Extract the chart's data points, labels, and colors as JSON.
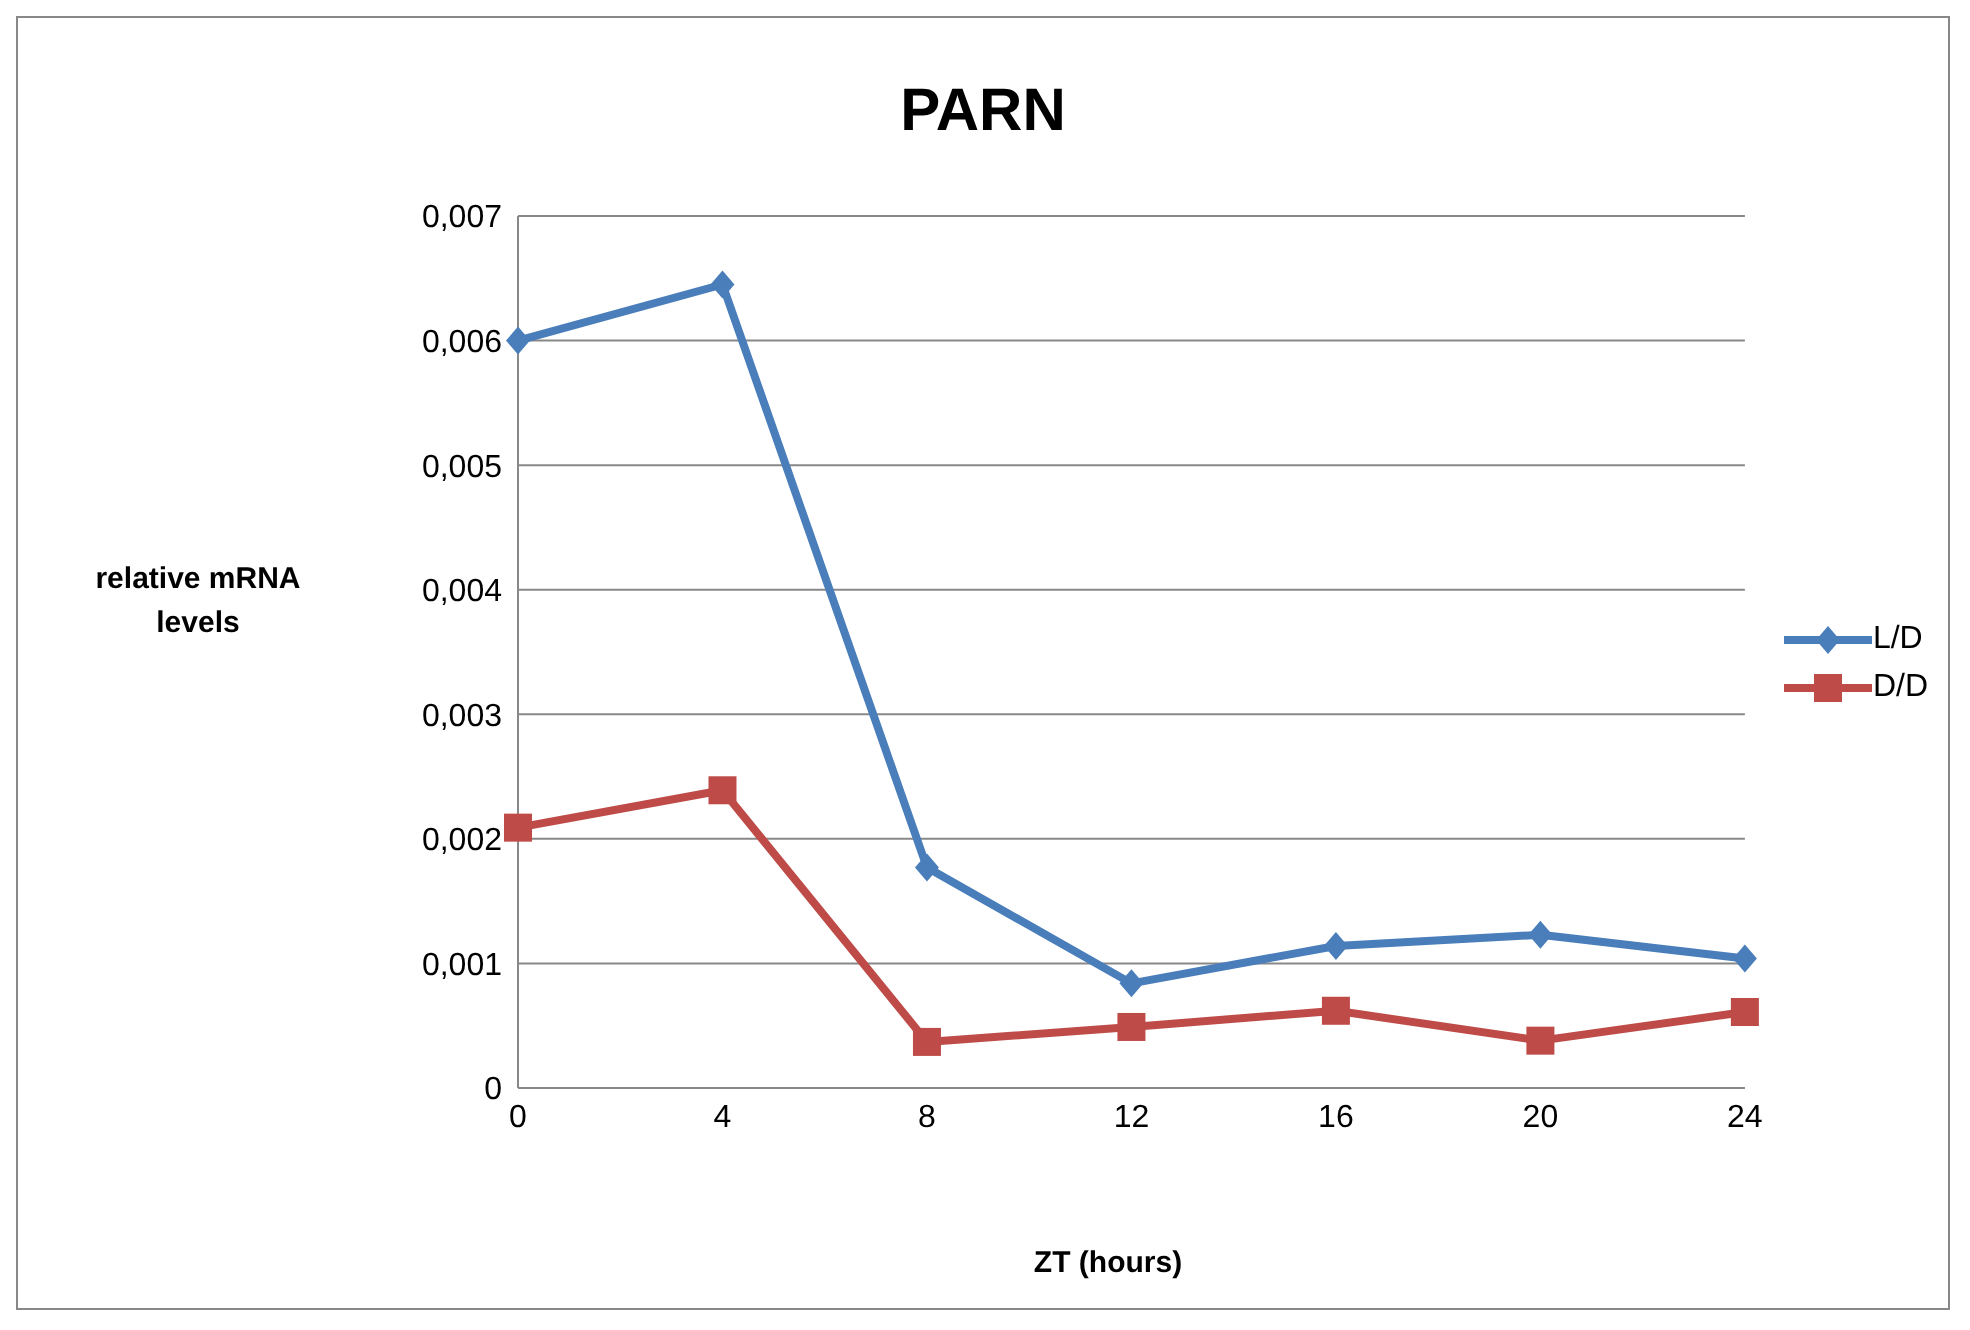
{
  "chart_data": {
    "type": "line",
    "title": "PARN",
    "xlabel": "ZT (hours)",
    "ylabel": "relative mRNA levels",
    "categories": [
      "0",
      "4",
      "8",
      "12",
      "16",
      "20",
      "24"
    ],
    "series": [
      {
        "name": "L/D",
        "color": "#4a7ebb",
        "marker": "diamond",
        "values": [
          0.006,
          0.00645,
          0.00177,
          0.00084,
          0.00114,
          0.00123,
          0.00104
        ]
      },
      {
        "name": "D/D",
        "color": "#be4b48",
        "marker": "square",
        "values": [
          0.00209,
          0.00239,
          0.00037,
          0.00049,
          0.00062,
          0.00038,
          0.00061
        ]
      }
    ],
    "ylim": [
      0,
      0.007
    ],
    "yticks": [
      0,
      {
        "value": 0.001,
        "label": "0,001"
      },
      {
        "value": 0.002,
        "label": "0,002"
      },
      {
        "value": 0.003,
        "label": "0,003"
      },
      {
        "value": 0.004,
        "label": "0,004"
      },
      {
        "value": 0.005,
        "label": "0,005"
      },
      {
        "value": 0.006,
        "label": "0,006"
      },
      {
        "value": 0.007,
        "label": "0,007"
      }
    ],
    "grid": "y",
    "legend": "right",
    "line_style": "solid"
  }
}
